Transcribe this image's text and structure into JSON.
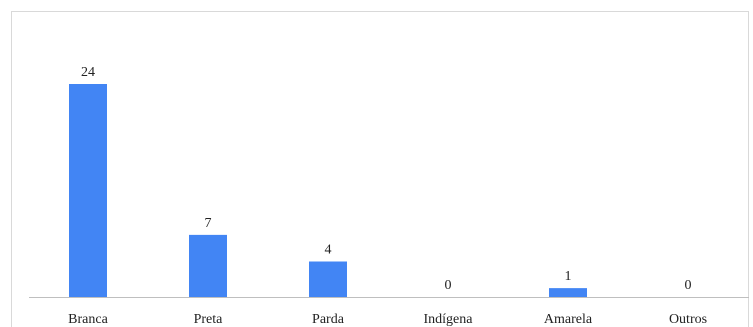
{
  "chart_data": {
    "type": "bar",
    "categories": [
      "Branca",
      "Preta",
      "Parda",
      "Indígena",
      "Amarela",
      "Outros"
    ],
    "values": [
      24,
      7,
      4,
      0,
      1,
      0
    ],
    "title": "",
    "xlabel": "",
    "ylabel": "",
    "ylim": [
      0,
      24
    ],
    "grid": false,
    "legend": "none",
    "bar_color": "#4285F4",
    "data_labels": true
  }
}
